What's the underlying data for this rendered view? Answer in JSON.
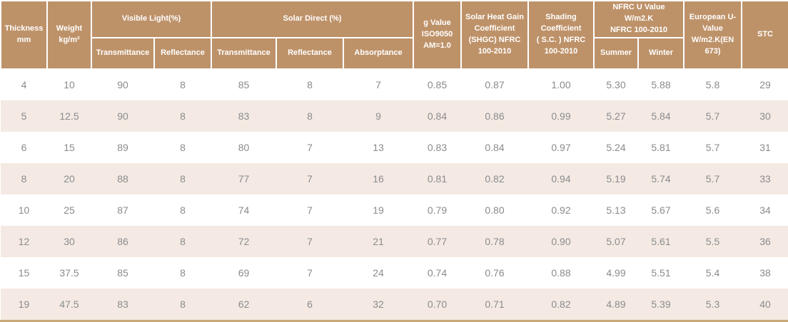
{
  "colors": {
    "header_bg": "#BE9269",
    "header_text": "#FFFFFF",
    "row_bg": "#FFFFFF",
    "row_alt_bg": "#F4EAE3",
    "body_text": "#8A8B8E",
    "bottom_border": "#C9A878"
  },
  "table": {
    "header": {
      "thickness": "Thickness\nmm",
      "weight": "Weight\nkg/m²",
      "visible_light": "Visible Light(%)",
      "solar_direct": "Solar  Direct (%)",
      "g_value": "g Value\nISO9050\nAM=1.0",
      "shgc": "Solar Heat Gain\nCoefficient\n(SHGC) NFRC\n100-2010",
      "shading": "Shading\nCoefficient\n( S.C. ) NFRC\n100-2010",
      "nfrc_u": "NFRC U Value\nW/m2.K\nNFRC 100-2010",
      "european_u": "European U-\nValue\nW/m2.K(EN\n673)",
      "stc": "STC",
      "vl_transmittance": "Transmittance",
      "vl_reflectance": "Reflectance",
      "sd_transmittance": "Transmittance",
      "sd_reflectance": "Reflectance",
      "sd_absorptance": "Absorptance",
      "summer": "Summer",
      "winter": "Winter"
    },
    "rows": [
      [
        "4",
        "10",
        "90",
        "8",
        "85",
        "8",
        "7",
        "0.85",
        "0.87",
        "1.00",
        "5.30",
        "5.88",
        "5.8",
        "29"
      ],
      [
        "5",
        "12.5",
        "90",
        "8",
        "83",
        "8",
        "9",
        "0.84",
        "0.86",
        "0.99",
        "5.27",
        "5.84",
        "5.7",
        "30"
      ],
      [
        "6",
        "15",
        "89",
        "8",
        "80",
        "7",
        "13",
        "0.83",
        "0.84",
        "0.97",
        "5.24",
        "5.81",
        "5.7",
        "31"
      ],
      [
        "8",
        "20",
        "88",
        "8",
        "77",
        "7",
        "16",
        "0.81",
        "0.82",
        "0.94",
        "5.19",
        "5.74",
        "5.7",
        "33"
      ],
      [
        "10",
        "25",
        "87",
        "8",
        "74",
        "7",
        "19",
        "0.79",
        "0.80",
        "0.92",
        "5.13",
        "5.67",
        "5.6",
        "34"
      ],
      [
        "12",
        "30",
        "86",
        "8",
        "72",
        "7",
        "21",
        "0.77",
        "0.78",
        "0.90",
        "5.07",
        "5.61",
        "5.5",
        "36"
      ],
      [
        "15",
        "37.5",
        "85",
        "8",
        "69",
        "7",
        "24",
        "0.74",
        "0.76",
        "0.88",
        "4.99",
        "5.51",
        "5.4",
        "38"
      ],
      [
        "19",
        "47.5",
        "83",
        "8",
        "62",
        "6",
        "32",
        "0.70",
        "0.71",
        "0.82",
        "4.89",
        "5.39",
        "5.3",
        "40"
      ]
    ]
  },
  "chart_data": {
    "type": "table",
    "columns": [
      "Thickness mm",
      "Weight kg/m²",
      "Visible Light(%) Transmittance",
      "Visible Light(%) Reflectance",
      "Solar Direct (%) Transmittance",
      "Solar Direct (%) Reflectance",
      "Solar Direct (%) Absorptance",
      "g Value ISO9050 AM=1.0",
      "Solar Heat Gain Coefficient (SHGC) NFRC 100-2010",
      "Shading Coefficient ( S.C. ) NFRC 100-2010",
      "NFRC U Value W/m2.K NFRC 100-2010 Summer",
      "NFRC U Value W/m2.K NFRC 100-2010 Winter",
      "European U-Value W/m2.K(EN 673)",
      "STC"
    ],
    "rows": [
      [
        "4",
        "10",
        "90",
        "8",
        "85",
        "8",
        "7",
        "0.85",
        "0.87",
        "1.00",
        "5.30",
        "5.88",
        "5.8",
        "29"
      ],
      [
        "5",
        "12.5",
        "90",
        "8",
        "83",
        "8",
        "9",
        "0.84",
        "0.86",
        "0.99",
        "5.27",
        "5.84",
        "5.7",
        "30"
      ],
      [
        "6",
        "15",
        "89",
        "8",
        "80",
        "7",
        "13",
        "0.83",
        "0.84",
        "0.97",
        "5.24",
        "5.81",
        "5.7",
        "31"
      ],
      [
        "8",
        "20",
        "88",
        "8",
        "77",
        "7",
        "16",
        "0.81",
        "0.82",
        "0.94",
        "5.19",
        "5.74",
        "5.7",
        "33"
      ],
      [
        "10",
        "25",
        "87",
        "8",
        "74",
        "7",
        "19",
        "0.79",
        "0.80",
        "0.92",
        "5.13",
        "5.67",
        "5.6",
        "34"
      ],
      [
        "12",
        "30",
        "86",
        "8",
        "72",
        "7",
        "21",
        "0.77",
        "0.78",
        "0.90",
        "5.07",
        "5.61",
        "5.5",
        "36"
      ],
      [
        "15",
        "37.5",
        "85",
        "8",
        "69",
        "7",
        "24",
        "0.74",
        "0.76",
        "0.88",
        "4.99",
        "5.51",
        "5.4",
        "38"
      ],
      [
        "19",
        "47.5",
        "83",
        "8",
        "62",
        "6",
        "32",
        "0.70",
        "0.71",
        "0.82",
        "4.89",
        "5.39",
        "5.3",
        "40"
      ]
    ]
  }
}
